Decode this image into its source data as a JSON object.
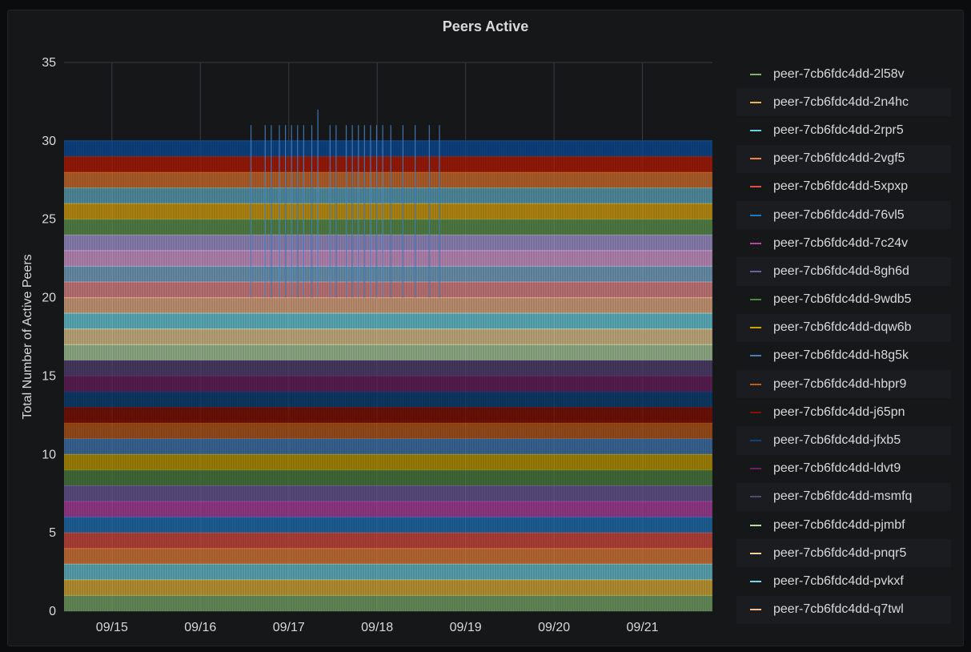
{
  "panel": {
    "title": "Peers Active"
  },
  "chart_data": {
    "type": "area",
    "stacked": true,
    "title": "Peers Active",
    "ylabel": "Total Number of Active Peers",
    "xlabel": "",
    "ylim": [
      0,
      35
    ],
    "yticks": [
      0,
      5,
      10,
      15,
      20,
      25,
      30,
      35
    ],
    "xlim": [
      "09/14 11:00",
      "09/21 19:00"
    ],
    "xticks": [
      "09/15",
      "09/16",
      "09/17",
      "09/18",
      "09/19",
      "09/20",
      "09/21"
    ],
    "grid": true,
    "legend_position": "right",
    "total_baseline": 30,
    "total_peak": 32,
    "series": [
      {
        "name": "peer-7cb6fdc4dd-2l58v",
        "color": "#7eb26d",
        "value": 1
      },
      {
        "name": "peer-7cb6fdc4dd-2n4hc",
        "color": "#eab839",
        "value": 1
      },
      {
        "name": "peer-7cb6fdc4dd-2rpr5",
        "color": "#6ed0e0",
        "value": 1
      },
      {
        "name": "peer-7cb6fdc4dd-2vgf5",
        "color": "#ef843c",
        "value": 1
      },
      {
        "name": "peer-7cb6fdc4dd-5xpxp",
        "color": "#e24d42",
        "value": 1
      },
      {
        "name": "peer-7cb6fdc4dd-76vl5",
        "color": "#1f78c1",
        "value": 1
      },
      {
        "name": "peer-7cb6fdc4dd-7c24v",
        "color": "#ba43a9",
        "value": 1
      },
      {
        "name": "peer-7cb6fdc4dd-8gh6d",
        "color": "#705da0",
        "value": 1
      },
      {
        "name": "peer-7cb6fdc4dd-9wdb5",
        "color": "#508642",
        "value": 1
      },
      {
        "name": "peer-7cb6fdc4dd-dqw6b",
        "color": "#cca300",
        "value": 1
      },
      {
        "name": "peer-7cb6fdc4dd-h8g5k",
        "color": "#447ebc",
        "value": 1
      },
      {
        "name": "peer-7cb6fdc4dd-hbpr9",
        "color": "#c15c17",
        "value": 1
      },
      {
        "name": "peer-7cb6fdc4dd-j65pn",
        "color": "#890f02",
        "value": 1
      },
      {
        "name": "peer-7cb6fdc4dd-jfxb5",
        "color": "#0a437c",
        "value": 1
      },
      {
        "name": "peer-7cb6fdc4dd-ldvt9",
        "color": "#6d1f62",
        "value": 1
      },
      {
        "name": "peer-7cb6fdc4dd-msmfq",
        "color": "#584477",
        "value": 1
      },
      {
        "name": "peer-7cb6fdc4dd-pjmbf",
        "color": "#b7dbab",
        "value": 1
      },
      {
        "name": "peer-7cb6fdc4dd-pnqr5",
        "color": "#f4d598",
        "value": 1
      },
      {
        "name": "peer-7cb6fdc4dd-pvkxf",
        "color": "#70dbed",
        "value": 1
      },
      {
        "name": "peer-7cb6fdc4dd-q7twl",
        "color": "#f9ba8f",
        "value": 1
      },
      {
        "name": "",
        "color": "#f29191",
        "value": 1
      },
      {
        "name": "",
        "color": "#82b5d8",
        "value": 1
      },
      {
        "name": "",
        "color": "#e5a8e2",
        "value": 1
      },
      {
        "name": "",
        "color": "#aea2e0",
        "value": 1
      },
      {
        "name": "",
        "color": "#629e51",
        "value": 1
      },
      {
        "name": "",
        "color": "#e5ac0e",
        "value": 1
      },
      {
        "name": "",
        "color": "#64b0c8",
        "value": 1
      },
      {
        "name": "",
        "color": "#e0752d",
        "value": 1
      },
      {
        "name": "",
        "color": "#bf1b00",
        "value": 1
      },
      {
        "name": "",
        "color": "#0a50a1",
        "value": 1
      }
    ]
  }
}
